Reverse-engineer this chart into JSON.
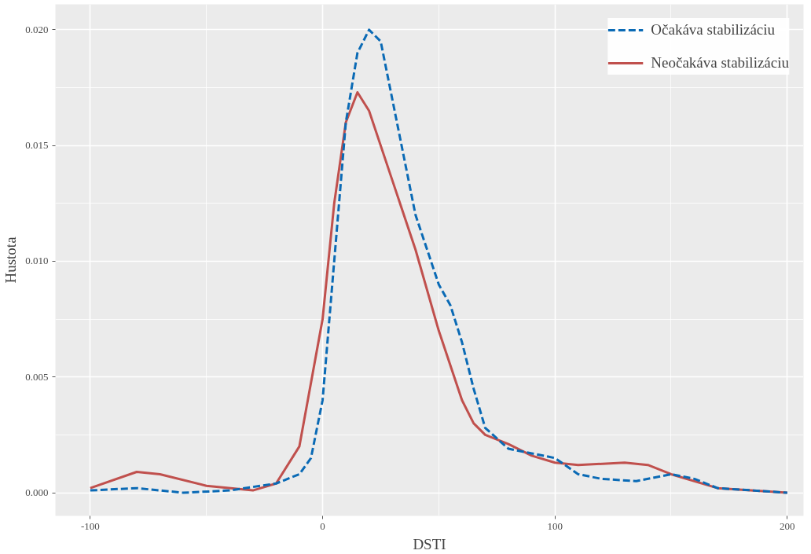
{
  "chart_data": {
    "type": "line",
    "xlabel": "DSTI",
    "ylabel": "Hustota",
    "xlim": [
      -115,
      207
    ],
    "ylim": [
      -0.001,
      0.0211
    ],
    "xticks": [
      -100,
      0,
      100,
      200
    ],
    "yticks": [
      {
        "value": 0,
        "label": "0.000"
      },
      {
        "value": 0.005,
        "label": "0.005"
      },
      {
        "value": 0.01,
        "label": "0.010"
      },
      {
        "value": 0.015,
        "label": "0.015"
      },
      {
        "value": 0.02,
        "label": "0.020"
      }
    ],
    "grid": true,
    "legend": "top right",
    "series": [
      {
        "name": "Očakáva stabilizáciu",
        "color": "#0a6ab5",
        "line_style": "dashed",
        "x": [
          -100,
          -80,
          -60,
          -40,
          -20,
          -10,
          -5,
          0,
          5,
          10,
          15,
          20,
          25,
          30,
          40,
          50,
          55,
          60,
          65,
          70,
          80,
          90,
          100,
          110,
          120,
          135,
          150,
          160,
          170,
          200
        ],
        "values": [
          0.0001,
          0.0002,
          0.0,
          0.0001,
          0.0004,
          0.0008,
          0.0015,
          0.004,
          0.01,
          0.016,
          0.019,
          0.02,
          0.0195,
          0.017,
          0.012,
          0.009,
          0.0081,
          0.0065,
          0.0045,
          0.0028,
          0.0019,
          0.0017,
          0.0015,
          0.0008,
          0.0006,
          0.0005,
          0.0008,
          0.0006,
          0.0002,
          0.0
        ]
      },
      {
        "name": "Neočakáva stabilizáciu",
        "color": "#c0504d",
        "line_style": "solid",
        "x": [
          -100,
          -80,
          -70,
          -50,
          -30,
          -20,
          -10,
          0,
          5,
          10,
          15,
          20,
          30,
          40,
          50,
          60,
          65,
          70,
          80,
          90,
          100,
          110,
          130,
          140,
          150,
          170,
          200
        ],
        "values": [
          0.0002,
          0.0009,
          0.0008,
          0.0003,
          0.0001,
          0.0004,
          0.002,
          0.0075,
          0.0125,
          0.016,
          0.0173,
          0.0165,
          0.0135,
          0.0105,
          0.007,
          0.004,
          0.003,
          0.0025,
          0.0021,
          0.0016,
          0.0013,
          0.0012,
          0.0013,
          0.0012,
          0.0008,
          0.0002,
          0.0
        ]
      }
    ]
  }
}
